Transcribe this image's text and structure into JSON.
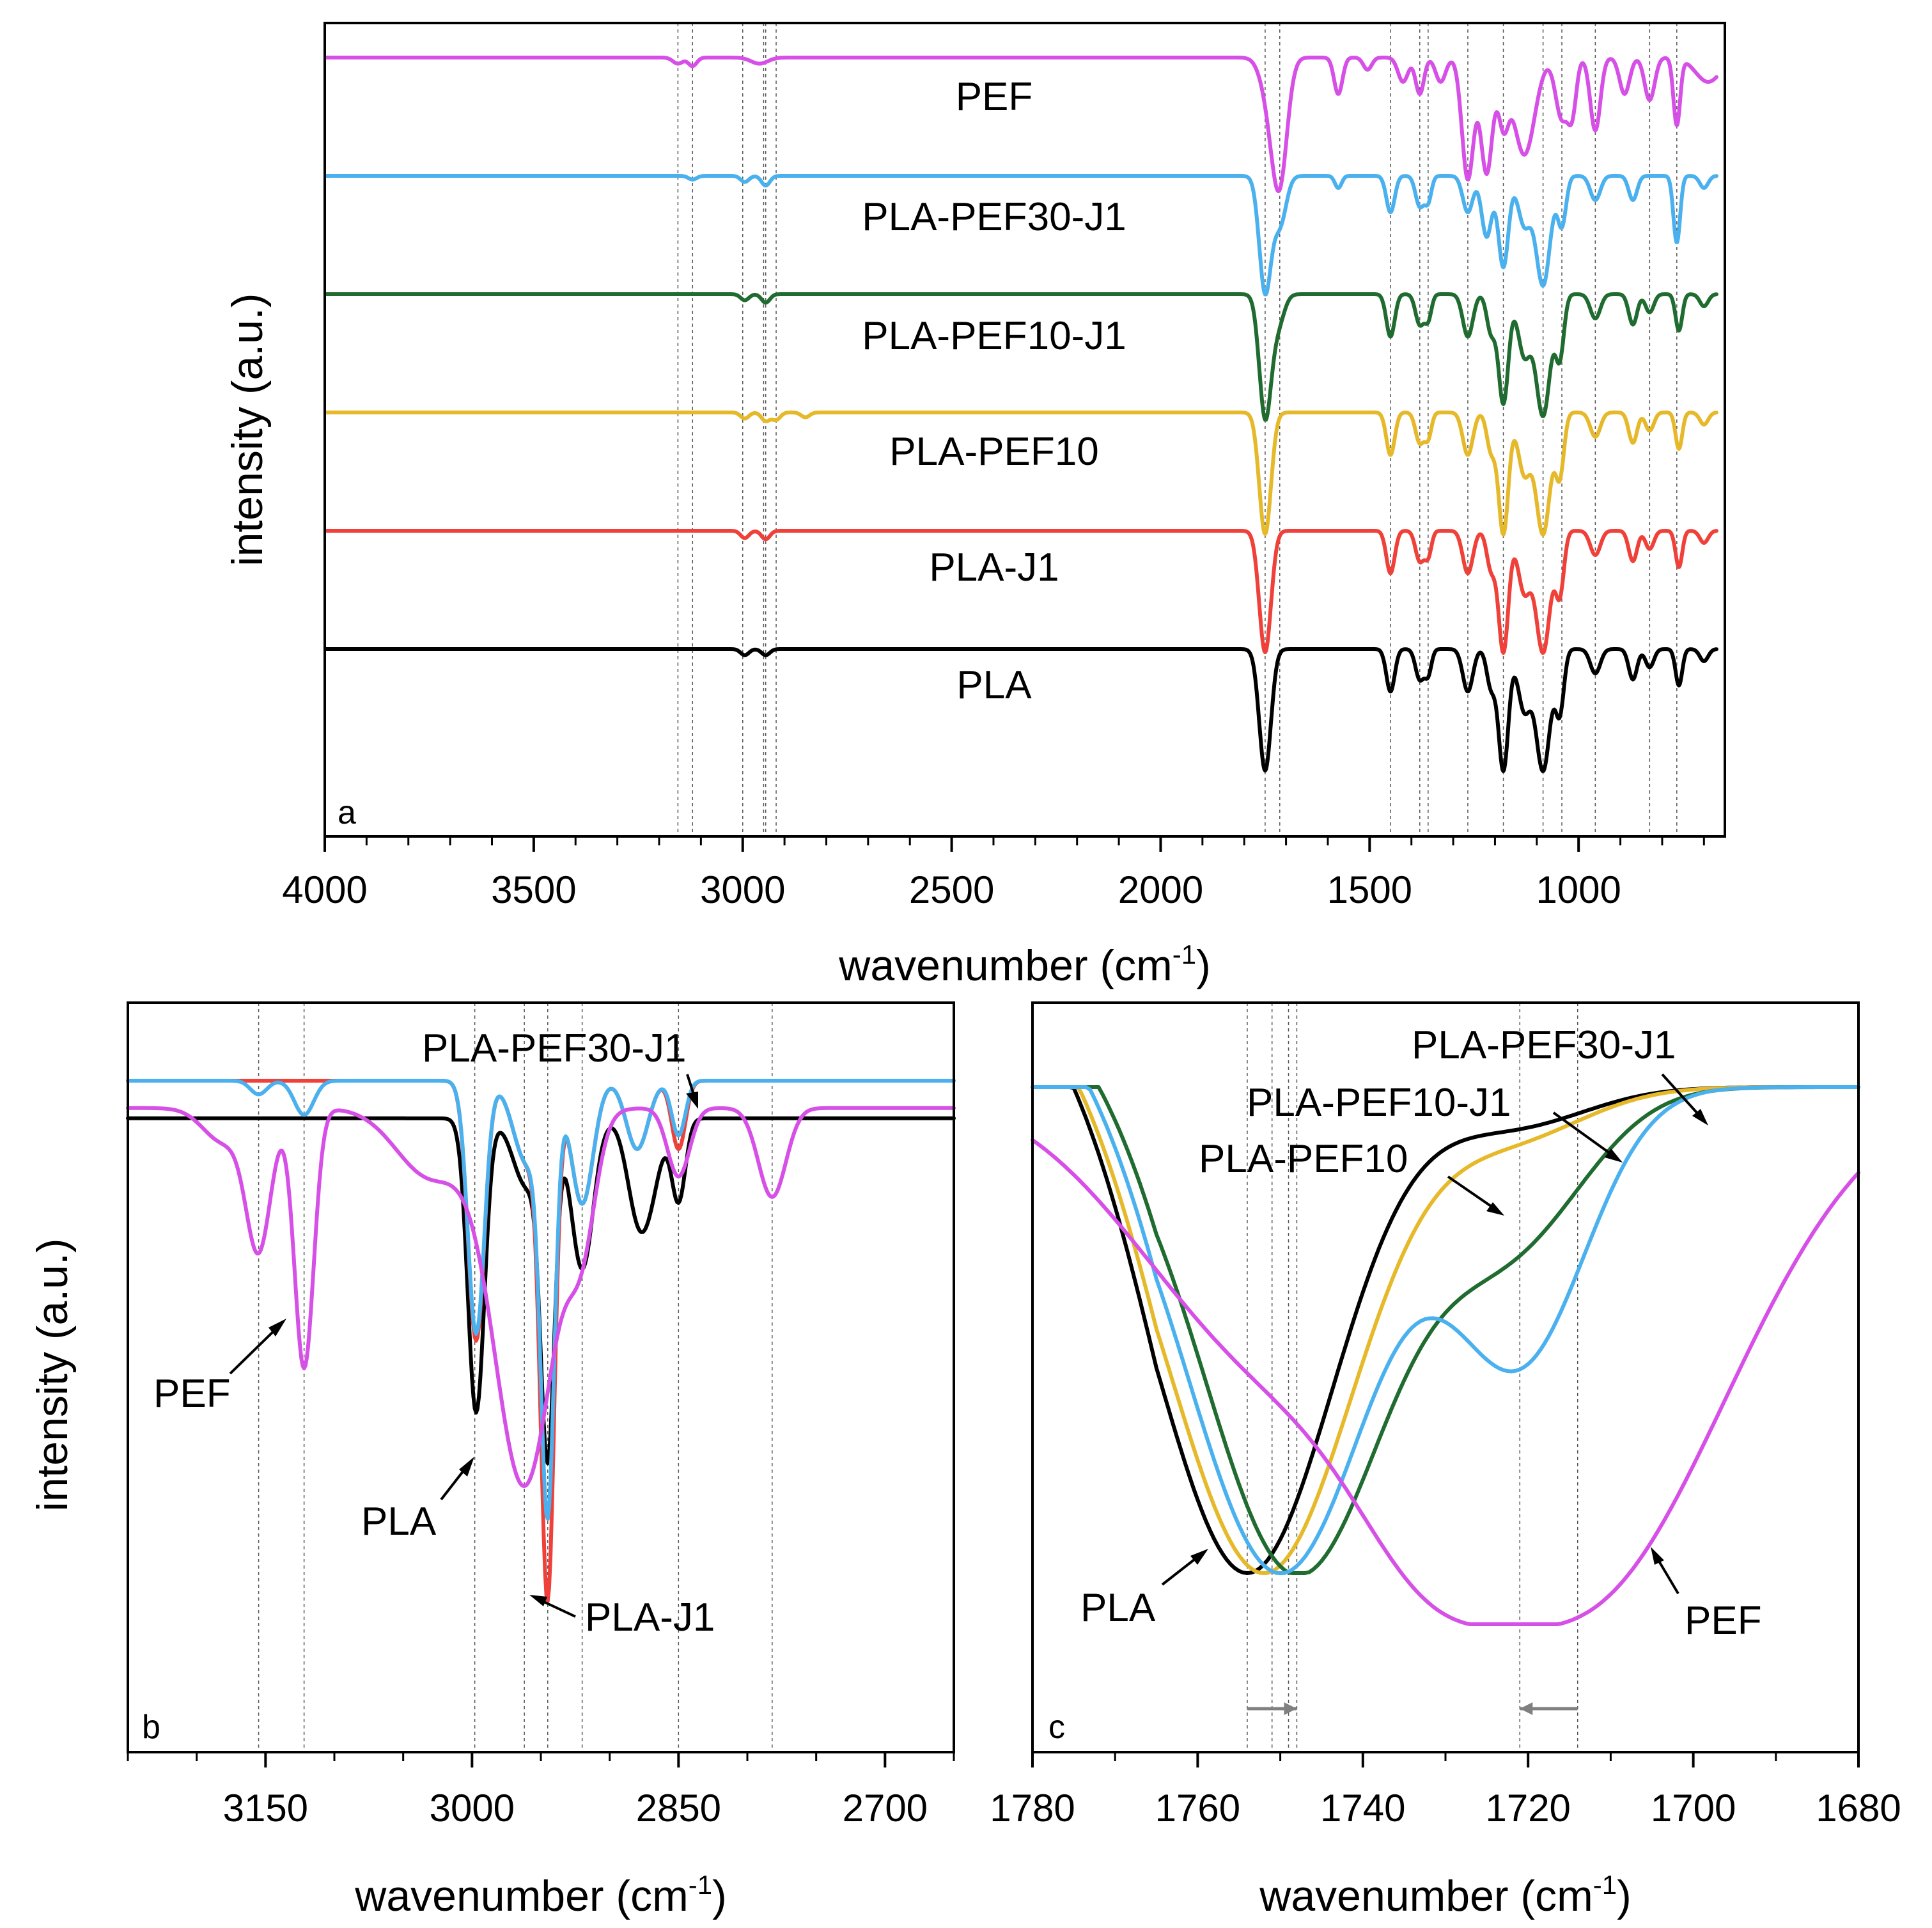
{
  "colors": {
    "PLA": "#000000",
    "PLA-J1": "#f0403a",
    "PLA-PEF10": "#e6b92a",
    "PLA-PEF10-J1": "#1f6b30",
    "PLA-PEF30-J1": "#4ab1ee",
    "PEF": "#d64fe6"
  },
  "chart_data": [
    {
      "panel": "a",
      "type": "line",
      "title": "",
      "xlabel": "wavenumber (cm",
      "xlabel_sup": "-1",
      "xlabel_close": ")",
      "ylabel": "intensity (a.u.)",
      "xlim": [
        4000,
        650
      ],
      "xticks": [
        "4000",
        "3500",
        "3000",
        "2500",
        "2000",
        "1500",
        "1000"
      ],
      "xtick_values": [
        4000,
        3500,
        3000,
        2500,
        2000,
        1500,
        1000
      ],
      "reference_lines": [
        3155,
        3120,
        3000,
        2950,
        2945,
        2920,
        1750,
        1715,
        1450,
        1380,
        1360,
        1265,
        1180,
        1085,
        1040,
        960,
        830,
        765
      ],
      "series": [
        {
          "name": "PEF",
          "key": "PEF",
          "offset": 5,
          "bands": [
            [
              3155,
              0.05,
              12
            ],
            [
              3120,
              0.07,
              10
            ],
            [
              2960,
              0.05,
              20
            ],
            [
              1715,
              0.95,
              18
            ],
            [
              1740,
              0.3,
              20
            ],
            [
              1575,
              0.3,
              10
            ],
            [
              1505,
              0.1,
              10
            ],
            [
              1420,
              0.2,
              12
            ],
            [
              1380,
              0.3,
              10
            ],
            [
              1330,
              0.2,
              12
            ],
            [
              1265,
              1.0,
              14
            ],
            [
              1220,
              0.95,
              14
            ],
            [
              1180,
              0.5,
              12
            ],
            [
              1130,
              0.8,
              25
            ],
            [
              1040,
              0.5,
              15
            ],
            [
              1015,
              0.4,
              10
            ],
            [
              960,
              0.6,
              12
            ],
            [
              890,
              0.3,
              12
            ],
            [
              830,
              0.35,
              12
            ],
            [
              765,
              0.55,
              8
            ],
            [
              690,
              0.2,
              30
            ]
          ]
        },
        {
          "name": "PLA-PEF30-J1",
          "key": "PLA-PEF30-J1",
          "offset": 4,
          "bands": [
            [
              3120,
              0.03,
              10
            ],
            [
              2995,
              0.05,
              10
            ],
            [
              2945,
              0.08,
              10
            ],
            [
              1750,
              0.95,
              14
            ],
            [
              1715,
              0.4,
              15
            ],
            [
              1575,
              0.1,
              8
            ],
            [
              1450,
              0.3,
              10
            ],
            [
              1380,
              0.25,
              10
            ],
            [
              1360,
              0.2,
              8
            ],
            [
              1265,
              0.3,
              12
            ],
            [
              1220,
              0.5,
              12
            ],
            [
              1180,
              0.75,
              12
            ],
            [
              1130,
              0.4,
              15
            ],
            [
              1085,
              0.9,
              17
            ],
            [
              1040,
              0.4,
              10
            ],
            [
              960,
              0.2,
              12
            ],
            [
              870,
              0.2,
              10
            ],
            [
              765,
              0.55,
              8
            ],
            [
              700,
              0.1,
              10
            ]
          ]
        },
        {
          "name": "PLA-PEF10-J1",
          "key": "PLA-PEF10-J1",
          "offset": 3,
          "bands": [
            [
              2995,
              0.05,
              10
            ],
            [
              2945,
              0.07,
              10
            ],
            [
              1750,
              1.0,
              14
            ],
            [
              1720,
              0.25,
              15
            ],
            [
              1450,
              0.35,
              10
            ],
            [
              1380,
              0.25,
              10
            ],
            [
              1360,
              0.2,
              8
            ],
            [
              1265,
              0.35,
              12
            ],
            [
              1210,
              0.3,
              10
            ],
            [
              1180,
              0.9,
              12
            ],
            [
              1130,
              0.5,
              15
            ],
            [
              1085,
              1.0,
              17
            ],
            [
              1045,
              0.5,
              10
            ],
            [
              960,
              0.2,
              12
            ],
            [
              870,
              0.25,
              10
            ],
            [
              830,
              0.15,
              10
            ],
            [
              760,
              0.3,
              8
            ],
            [
              700,
              0.1,
              10
            ]
          ]
        },
        {
          "name": "PLA-PEF10",
          "key": "PLA-PEF10",
          "offset": 2,
          "bands": [
            [
              2995,
              0.05,
              10
            ],
            [
              2945,
              0.07,
              10
            ],
            [
              2920,
              0.06,
              10
            ],
            [
              2850,
              0.04,
              10
            ],
            [
              1750,
              1.0,
              14
            ],
            [
              1450,
              0.35,
              10
            ],
            [
              1380,
              0.25,
              10
            ],
            [
              1360,
              0.2,
              8
            ],
            [
              1265,
              0.35,
              12
            ],
            [
              1210,
              0.3,
              10
            ],
            [
              1180,
              1.0,
              12
            ],
            [
              1130,
              0.5,
              15
            ],
            [
              1085,
              1.0,
              17
            ],
            [
              1045,
              0.5,
              10
            ],
            [
              960,
              0.2,
              12
            ],
            [
              870,
              0.25,
              10
            ],
            [
              830,
              0.15,
              10
            ],
            [
              760,
              0.3,
              8
            ],
            [
              700,
              0.1,
              10
            ]
          ]
        },
        {
          "name": "PLA-J1",
          "key": "PLA-J1",
          "offset": 1,
          "bands": [
            [
              2995,
              0.06,
              10
            ],
            [
              2945,
              0.07,
              10
            ],
            [
              1750,
              1.0,
              14
            ],
            [
              1450,
              0.35,
              10
            ],
            [
              1380,
              0.25,
              10
            ],
            [
              1360,
              0.2,
              8
            ],
            [
              1265,
              0.35,
              12
            ],
            [
              1210,
              0.3,
              10
            ],
            [
              1180,
              1.0,
              12
            ],
            [
              1130,
              0.5,
              15
            ],
            [
              1085,
              1.0,
              17
            ],
            [
              1045,
              0.5,
              10
            ],
            [
              960,
              0.2,
              12
            ],
            [
              870,
              0.25,
              10
            ],
            [
              830,
              0.15,
              10
            ],
            [
              760,
              0.3,
              8
            ],
            [
              700,
              0.1,
              10
            ]
          ]
        },
        {
          "name": "PLA",
          "key": "PLA",
          "offset": 0,
          "bands": [
            [
              2995,
              0.05,
              10
            ],
            [
              2945,
              0.05,
              10
            ],
            [
              1750,
              1.0,
              14
            ],
            [
              1450,
              0.35,
              10
            ],
            [
              1380,
              0.25,
              10
            ],
            [
              1360,
              0.2,
              8
            ],
            [
              1265,
              0.35,
              12
            ],
            [
              1210,
              0.3,
              10
            ],
            [
              1180,
              1.0,
              12
            ],
            [
              1130,
              0.5,
              15
            ],
            [
              1085,
              1.0,
              17
            ],
            [
              1045,
              0.5,
              10
            ],
            [
              960,
              0.2,
              12
            ],
            [
              870,
              0.25,
              10
            ],
            [
              830,
              0.15,
              10
            ],
            [
              760,
              0.3,
              8
            ],
            [
              700,
              0.1,
              10
            ]
          ]
        }
      ],
      "series_labels": [
        "PEF",
        "PLA-PEF30-J1",
        "PLA-PEF10-J1",
        "PLA-PEF10",
        "PLA-J1",
        "PLA"
      ],
      "panel_label": "a"
    },
    {
      "panel": "b",
      "type": "line",
      "xlabel": "wavenumber (cm",
      "xlabel_sup": "-1",
      "xlabel_close": ")",
      "ylabel": "intensity (a.u.)",
      "xlim": [
        3250,
        2650
      ],
      "xticks": [
        "3150",
        "3000",
        "2850",
        "2700"
      ],
      "xtick_values": [
        3150,
        3000,
        2850,
        2700
      ],
      "reference_lines": [
        3155,
        3122,
        2998,
        2962,
        2945,
        2920,
        2850,
        2782
      ],
      "series": [
        {
          "name": "PLA",
          "key": "PLA",
          "base": 0.055,
          "bands": [
            [
              2997,
              0.43,
              6
            ],
            [
              2945,
              0.47,
              5
            ],
            [
              2960,
              0.1,
              10
            ],
            [
              2920,
              0.22,
              8
            ],
            [
              2880,
              0.12,
              8
            ],
            [
              2850,
              0.12,
              5
            ],
            [
              2870,
              0.08,
              8
            ]
          ]
        },
        {
          "name": "PLA-J1",
          "key": "PLA-J1",
          "base": 0.0,
          "bands": [
            [
              2997,
              0.38,
              6
            ],
            [
              2945,
              0.72,
              5
            ],
            [
              2960,
              0.12,
              10
            ],
            [
              2920,
              0.18,
              8
            ],
            [
              2880,
              0.1,
              8
            ],
            [
              2850,
              0.1,
              5
            ]
          ]
        },
        {
          "name": "PLA-PEF30-J1",
          "key": "PLA-PEF30-J1",
          "base": 0.0,
          "bands": [
            [
              3122,
              0.05,
              7
            ],
            [
              3155,
              0.02,
              6
            ],
            [
              2997,
              0.37,
              6
            ],
            [
              2945,
              0.6,
              5
            ],
            [
              2960,
              0.12,
              10
            ],
            [
              2920,
              0.18,
              8
            ],
            [
              2880,
              0.1,
              8
            ],
            [
              2850,
              0.08,
              5
            ]
          ]
        },
        {
          "name": "PEF",
          "key": "PEF",
          "base": 0.04,
          "bands": [
            [
              3155,
              0.2,
              9
            ],
            [
              3122,
              0.38,
              7
            ],
            [
              3180,
              0.05,
              15
            ],
            [
              2962,
              0.55,
              22
            ],
            [
              3030,
              0.1,
              25
            ],
            [
              2920,
              0.15,
              10
            ],
            [
              2850,
              0.1,
              8
            ],
            [
              2782,
              0.13,
              10
            ]
          ]
        }
      ],
      "annotations": [
        {
          "text": "PLA-PEF30-J1",
          "x": 2872,
          "tip_value": 2850
        },
        {
          "text": "PEF",
          "x": 3180,
          "tip_value": 3144
        },
        {
          "text": "PLA",
          "x": 3020,
          "tip_value": 2998
        },
        {
          "text": "PLA-J1",
          "x": 2880,
          "tip_value": 2947
        }
      ],
      "panel_label": "b"
    },
    {
      "panel": "c",
      "type": "line",
      "xlabel": "wavenumber (cm",
      "xlabel_sup": "-1",
      "xlabel_close": ")",
      "xlim": [
        1780,
        1680
      ],
      "xticks": [
        "1780",
        "1760",
        "1740",
        "1720",
        "1700",
        "1680"
      ],
      "xtick_values": [
        1780,
        1760,
        1740,
        1720,
        1700,
        1680
      ],
      "reference_lines": [
        1754,
        1751,
        1749,
        1748,
        1721,
        1714
      ],
      "series": [
        {
          "name": "PLA",
          "key": "PLA",
          "min_wavenumber": 1754
        },
        {
          "name": "PLA-PEF10",
          "key": "PLA-PEF10",
          "min_wavenumber": 1752
        },
        {
          "name": "PLA-PEF10-J1",
          "key": "PLA-PEF10-J1",
          "min_wavenumber": 1748
        },
        {
          "name": "PLA-PEF30-J1",
          "key": "PLA-PEF30-J1",
          "min_wavenumber": 1750,
          "shoulder": 1721
        },
        {
          "name": "PEF",
          "key": "PEF",
          "min_wavenumber": 1714
        }
      ],
      "annotations": [
        {
          "text": "PLA-PEF30-J1"
        },
        {
          "text": "PLA-PEF10-J1"
        },
        {
          "text": "PLA-PEF10"
        },
        {
          "text": "PLA"
        },
        {
          "text": "PEF"
        }
      ],
      "shift_arrows": [
        {
          "from": 1754,
          "to": 1748
        },
        {
          "from": 1714,
          "to": 1721
        }
      ],
      "panel_label": "c"
    }
  ]
}
